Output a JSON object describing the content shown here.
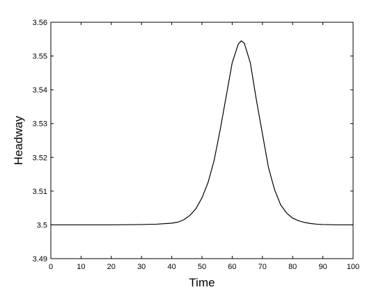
{
  "chart_data": {
    "type": "line",
    "xlabel": "Time",
    "ylabel": "Headway",
    "x": [
      0,
      10,
      20,
      30,
      35,
      40,
      42,
      44,
      46,
      48,
      50,
      52,
      54,
      56,
      58,
      60,
      62,
      63,
      64,
      66,
      68,
      70,
      72,
      74,
      76,
      78,
      80,
      82,
      84,
      86,
      88,
      90,
      95,
      100
    ],
    "values": [
      3.5,
      3.5,
      3.5,
      3.5001,
      3.5002,
      3.5005,
      3.5008,
      3.5015,
      3.5028,
      3.5048,
      3.508,
      3.5125,
      3.519,
      3.528,
      3.538,
      3.548,
      3.5535,
      3.5545,
      3.5538,
      3.548,
      3.537,
      3.527,
      3.517,
      3.5105,
      3.506,
      3.5035,
      3.502,
      3.5012,
      3.5007,
      3.5004,
      3.5002,
      3.5001,
      3.5,
      3.5
    ],
    "color": "#000000",
    "xlim": [
      0,
      100
    ],
    "xticks": [
      0,
      10,
      20,
      30,
      40,
      50,
      60,
      70,
      80,
      90,
      100
    ],
    "ylim": [
      3.49,
      3.56
    ],
    "yticks": [
      3.49,
      3.5,
      3.51,
      3.52,
      3.53,
      3.54,
      3.55,
      3.56
    ]
  }
}
